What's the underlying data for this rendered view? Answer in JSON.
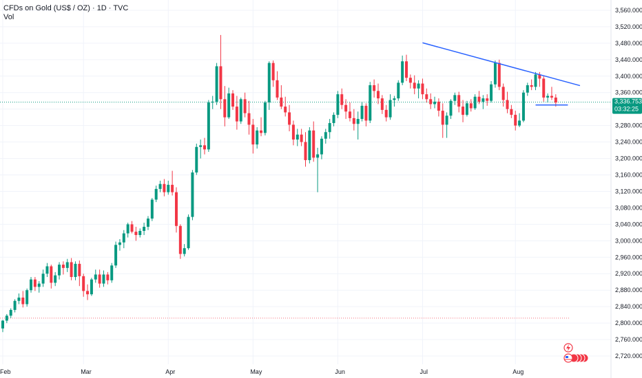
{
  "header": {
    "symbol": "CFDs on Gold (US$ / OZ) · 1D · TVC",
    "indicator": "Vol"
  },
  "chart_data": {
    "type": "candlestick",
    "y_axis": {
      "ticks": [
        2720,
        2760,
        2800,
        2840,
        2880,
        2920,
        2960,
        3000,
        3040,
        3080,
        3120,
        3160,
        3200,
        3240,
        3280,
        3320,
        3360,
        3400,
        3440,
        3480,
        3520,
        3560
      ],
      "tick_labels": [
        "2,720.000",
        "2,760.000",
        "2,800.000",
        "2,840.000",
        "2,880.000",
        "2,920.000",
        "2,960.000",
        "3,000.000",
        "3,040.000",
        "3,080.000",
        "3,120.000",
        "3,160.000",
        "3,200.000",
        "3,240.000",
        "3,280.000",
        "3,320.000",
        "3,360.000",
        "3,400.000",
        "3,440.000",
        "3,480.000",
        "3,520.000",
        "3,560.000"
      ],
      "range": [
        2700,
        3585
      ]
    },
    "x_axis": {
      "labels": [
        "Feb",
        "Mar",
        "Apr",
        "May",
        "Jun",
        "Jul",
        "Aug"
      ],
      "label_index": [
        0,
        20,
        41,
        62,
        83,
        104,
        127
      ]
    },
    "current_price": 3336.753,
    "current_price_label": "3,336.753",
    "countdown": "03:32:25",
    "reference_level": 2812,
    "trendline": [
      [
        104,
        3481
      ],
      [
        143,
        3377
      ]
    ],
    "support_line": [
      [
        132,
        3330
      ],
      [
        140,
        3330
      ]
    ],
    "candles": [
      [
        2787,
        2808,
        2778,
        2806
      ],
      [
        2806,
        2822,
        2800,
        2818
      ],
      [
        2818,
        2836,
        2812,
        2832
      ],
      [
        2832,
        2858,
        2826,
        2854
      ],
      [
        2854,
        2872,
        2846,
        2862
      ],
      [
        2862,
        2878,
        2838,
        2846
      ],
      [
        2846,
        2884,
        2840,
        2880
      ],
      [
        2880,
        2912,
        2874,
        2906
      ],
      [
        2906,
        2912,
        2878,
        2888
      ],
      [
        2888,
        2902,
        2874,
        2896
      ],
      [
        2896,
        2930,
        2888,
        2920
      ],
      [
        2920,
        2946,
        2912,
        2938
      ],
      [
        2938,
        2942,
        2884,
        2898
      ],
      [
        2898,
        2924,
        2890,
        2916
      ],
      [
        2916,
        2948,
        2906,
        2942
      ],
      [
        2942,
        2950,
        2918,
        2934
      ],
      [
        2934,
        2956,
        2924,
        2948
      ],
      [
        2948,
        2958,
        2904,
        2912
      ],
      [
        2912,
        2950,
        2904,
        2944
      ],
      [
        2944,
        2952,
        2890,
        2914
      ],
      [
        2914,
        2920,
        2864,
        2878
      ],
      [
        2878,
        2894,
        2856,
        2870
      ],
      [
        2870,
        2910,
        2866,
        2906
      ],
      [
        2906,
        2930,
        2898,
        2918
      ],
      [
        2918,
        2930,
        2886,
        2896
      ],
      [
        2896,
        2928,
        2888,
        2918
      ],
      [
        2918,
        2924,
        2894,
        2904
      ],
      [
        2904,
        2946,
        2898,
        2940
      ],
      [
        2940,
        2998,
        2934,
        2990
      ],
      [
        2990,
        3004,
        2976,
        2996
      ],
      [
        2996,
        3026,
        2982,
        3018
      ],
      [
        3018,
        3044,
        3008,
        3040
      ],
      [
        3040,
        3048,
        3018,
        3022
      ],
      [
        3022,
        3034,
        3000,
        3014
      ],
      [
        3014,
        3030,
        3008,
        3024
      ],
      [
        3024,
        3044,
        3014,
        3034
      ],
      [
        3034,
        3060,
        3026,
        3054
      ],
      [
        3054,
        3104,
        3048,
        3100
      ],
      [
        3100,
        3134,
        3094,
        3126
      ],
      [
        3126,
        3146,
        3118,
        3138
      ],
      [
        3138,
        3150,
        3108,
        3118
      ],
      [
        3118,
        3146,
        3112,
        3136
      ],
      [
        3136,
        3170,
        3110,
        3118
      ],
      [
        3118,
        3130,
        3020,
        3036
      ],
      [
        3036,
        3040,
        2956,
        2968
      ],
      [
        2968,
        2992,
        2962,
        2982
      ],
      [
        2982,
        3064,
        2978,
        3058
      ],
      [
        3058,
        3172,
        3050,
        3166
      ],
      [
        3166,
        3236,
        3160,
        3228
      ],
      [
        3228,
        3246,
        3200,
        3232
      ],
      [
        3232,
        3250,
        3210,
        3222
      ],
      [
        3222,
        3342,
        3216,
        3336
      ],
      [
        3336,
        3352,
        3320,
        3338
      ],
      [
        3338,
        3432,
        3330,
        3424
      ],
      [
        3424,
        3500,
        3320,
        3344
      ],
      [
        3344,
        3376,
        3278,
        3300
      ],
      [
        3300,
        3372,
        3296,
        3358
      ],
      [
        3358,
        3366,
        3318,
        3326
      ],
      [
        3326,
        3352,
        3270,
        3290
      ],
      [
        3290,
        3348,
        3284,
        3344
      ],
      [
        3344,
        3360,
        3300,
        3310
      ],
      [
        3310,
        3340,
        3258,
        3282
      ],
      [
        3282,
        3296,
        3212,
        3234
      ],
      [
        3234,
        3276,
        3224,
        3268
      ],
      [
        3268,
        3300,
        3254,
        3262
      ],
      [
        3262,
        3340,
        3256,
        3336
      ],
      [
        3336,
        3436,
        3318,
        3432
      ],
      [
        3432,
        3438,
        3374,
        3390
      ],
      [
        3390,
        3412,
        3342,
        3348
      ],
      [
        3348,
        3378,
        3320,
        3326
      ],
      [
        3326,
        3350,
        3302,
        3312
      ],
      [
        3312,
        3330,
        3266,
        3282
      ],
      [
        3282,
        3292,
        3232,
        3246
      ],
      [
        3246,
        3272,
        3230,
        3258
      ],
      [
        3258,
        3272,
        3230,
        3240
      ],
      [
        3240,
        3264,
        3180,
        3196
      ],
      [
        3196,
        3276,
        3188,
        3268
      ],
      [
        3268,
        3290,
        3192,
        3202
      ],
      [
        3202,
        3226,
        3118,
        3210
      ],
      [
        3210,
        3254,
        3198,
        3248
      ],
      [
        3248,
        3272,
        3236,
        3264
      ],
      [
        3264,
        3296,
        3248,
        3286
      ],
      [
        3286,
        3312,
        3278,
        3306
      ],
      [
        3306,
        3364,
        3298,
        3356
      ],
      [
        3356,
        3370,
        3320,
        3330
      ],
      [
        3330,
        3344,
        3296,
        3314
      ],
      [
        3314,
        3336,
        3290,
        3298
      ],
      [
        3298,
        3320,
        3268,
        3284
      ],
      [
        3284,
        3314,
        3246,
        3296
      ],
      [
        3296,
        3338,
        3290,
        3328
      ],
      [
        3328,
        3334,
        3278,
        3292
      ],
      [
        3292,
        3386,
        3286,
        3378
      ],
      [
        3378,
        3392,
        3348,
        3364
      ],
      [
        3364,
        3382,
        3332,
        3346
      ],
      [
        3346,
        3354,
        3308,
        3318
      ],
      [
        3318,
        3330,
        3290,
        3300
      ],
      [
        3300,
        3356,
        3294,
        3342
      ],
      [
        3342,
        3352,
        3326,
        3346
      ],
      [
        3346,
        3390,
        3340,
        3384
      ],
      [
        3384,
        3450,
        3378,
        3436
      ],
      [
        3436,
        3452,
        3388,
        3396
      ],
      [
        3396,
        3404,
        3370,
        3384
      ],
      [
        3384,
        3402,
        3356,
        3370
      ],
      [
        3370,
        3390,
        3346,
        3382
      ],
      [
        3382,
        3394,
        3344,
        3356
      ],
      [
        3356,
        3370,
        3336,
        3344
      ],
      [
        3344,
        3358,
        3320,
        3332
      ],
      [
        3332,
        3350,
        3322,
        3338
      ],
      [
        3338,
        3346,
        3302,
        3316
      ],
      [
        3316,
        3334,
        3250,
        3282
      ],
      [
        3282,
        3312,
        3250,
        3304
      ],
      [
        3304,
        3344,
        3296,
        3340
      ],
      [
        3340,
        3360,
        3330,
        3354
      ],
      [
        3354,
        3362,
        3312,
        3326
      ],
      [
        3326,
        3342,
        3288,
        3306
      ],
      [
        3306,
        3340,
        3302,
        3334
      ],
      [
        3334,
        3344,
        3314,
        3322
      ],
      [
        3322,
        3356,
        3318,
        3350
      ],
      [
        3350,
        3364,
        3332,
        3338
      ],
      [
        3338,
        3354,
        3320,
        3346
      ],
      [
        3346,
        3356,
        3328,
        3340
      ],
      [
        3340,
        3388,
        3336,
        3380
      ],
      [
        3380,
        3438,
        3372,
        3432
      ],
      [
        3432,
        3440,
        3366,
        3374
      ],
      [
        3374,
        3382,
        3326,
        3342
      ],
      [
        3342,
        3362,
        3310,
        3320
      ],
      [
        3320,
        3330,
        3298,
        3306
      ],
      [
        3306,
        3316,
        3268,
        3280
      ],
      [
        3280,
        3310,
        3276,
        3292
      ],
      [
        3292,
        3366,
        3288,
        3360
      ],
      [
        3360,
        3384,
        3352,
        3378
      ],
      [
        3378,
        3392,
        3366,
        3374
      ],
      [
        3374,
        3410,
        3366,
        3404
      ],
      [
        3404,
        3410,
        3374,
        3394
      ],
      [
        3394,
        3400,
        3338,
        3348
      ],
      [
        3348,
        3358,
        3336,
        3352
      ],
      [
        3352,
        3374,
        3342,
        3348
      ],
      [
        3348,
        3356,
        3326,
        3336
      ]
    ]
  },
  "colors": {
    "up": "#089981",
    "down": "#f23645",
    "trendline": "#2962ff",
    "price_line": "#089981",
    "reference": "#f23645",
    "axis_text": "#131722",
    "grid": "#f0f3fa"
  },
  "icons": {
    "alert": "lightning-icon",
    "events": "us-flag-icon"
  }
}
